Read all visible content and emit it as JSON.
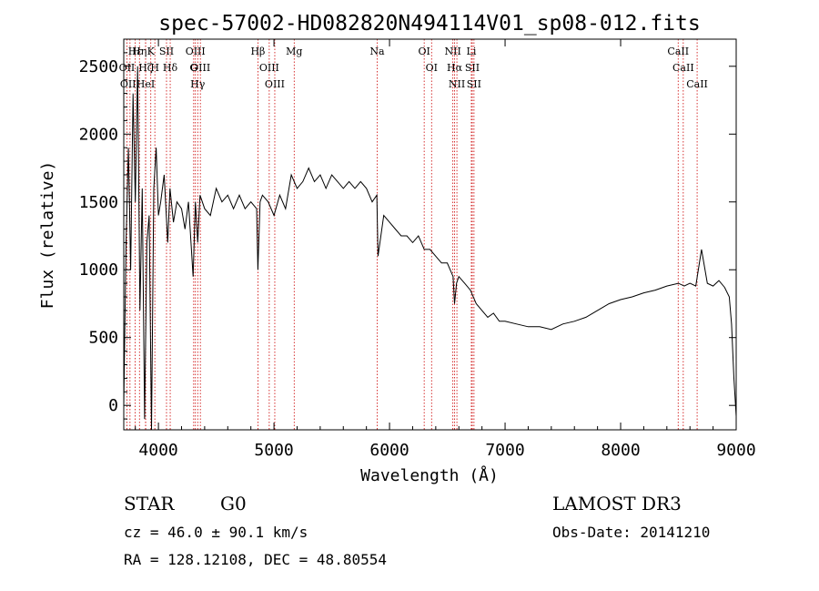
{
  "chart_data": {
    "type": "line",
    "title": "spec-57002-HD082820N494114V01_sp08-012.fits",
    "xlabel": "Wavelength (Å)",
    "ylabel": "Flux (relative)",
    "xlim": [
      3700,
      9000
    ],
    "ylim": [
      -180,
      2700
    ],
    "xticks": [
      4000,
      5000,
      6000,
      7000,
      8000,
      9000
    ],
    "yticks": [
      0,
      500,
      1000,
      1500,
      2000,
      2500
    ],
    "series": [
      {
        "name": "flux",
        "x": [
          3700,
          3720,
          3740,
          3760,
          3780,
          3800,
          3820,
          3840,
          3860,
          3880,
          3900,
          3920,
          3940,
          3960,
          3980,
          4000,
          4020,
          4050,
          4080,
          4100,
          4130,
          4160,
          4200,
          4230,
          4260,
          4300,
          4320,
          4340,
          4360,
          4400,
          4450,
          4500,
          4550,
          4600,
          4650,
          4700,
          4750,
          4800,
          4850,
          4861,
          4880,
          4900,
          4950,
          5000,
          5050,
          5100,
          5150,
          5200,
          5250,
          5300,
          5350,
          5400,
          5450,
          5500,
          5550,
          5600,
          5650,
          5700,
          5750,
          5800,
          5850,
          5890,
          5900,
          5950,
          6000,
          6050,
          6100,
          6150,
          6200,
          6250,
          6300,
          6350,
          6400,
          6450,
          6500,
          6550,
          6563,
          6580,
          6600,
          6650,
          6700,
          6750,
          6800,
          6850,
          6900,
          6950,
          7000,
          7100,
          7200,
          7300,
          7400,
          7500,
          7600,
          7700,
          7800,
          7900,
          8000,
          8100,
          8200,
          8300,
          8400,
          8500,
          8550,
          8600,
          8650,
          8700,
          8750,
          8800,
          8850,
          8900,
          8940,
          8960,
          8980,
          9000
        ],
        "y": [
          0,
          1200,
          1900,
          1000,
          2300,
          1500,
          2500,
          700,
          1600,
          -100,
          1200,
          1400,
          -180,
          1600,
          1900,
          1400,
          1500,
          1700,
          1200,
          1600,
          1350,
          1500,
          1450,
          1300,
          1500,
          950,
          1500,
          1200,
          1550,
          1450,
          1400,
          1600,
          1500,
          1550,
          1450,
          1550,
          1450,
          1500,
          1450,
          1000,
          1500,
          1550,
          1500,
          1400,
          1550,
          1450,
          1700,
          1600,
          1650,
          1750,
          1650,
          1700,
          1600,
          1700,
          1650,
          1600,
          1650,
          1600,
          1650,
          1600,
          1500,
          1550,
          1100,
          1400,
          1350,
          1300,
          1250,
          1250,
          1200,
          1250,
          1150,
          1150,
          1100,
          1050,
          1050,
          950,
          750,
          900,
          950,
          900,
          850,
          750,
          700,
          650,
          680,
          620,
          620,
          600,
          580,
          580,
          560,
          600,
          620,
          650,
          700,
          750,
          780,
          800,
          830,
          850,
          880,
          900,
          880,
          900,
          880,
          1150,
          900,
          880,
          920,
          870,
          800,
          600,
          200,
          -80
        ]
      }
    ],
    "line_markers": [
      {
        "label": "Hε",
        "wavelength": 3798
      },
      {
        "label": "OII",
        "wavelength": 3727
      },
      {
        "label": "OIII",
        "wavelength": 3754
      },
      {
        "label": "Hη",
        "wavelength": 3836
      },
      {
        "label": "Hζ",
        "wavelength": 3889
      },
      {
        "label": "HeI",
        "wavelength": 3889
      },
      {
        "label": "K",
        "wavelength": 3934
      },
      {
        "label": "H",
        "wavelength": 3969
      },
      {
        "label": "SII",
        "wavelength": 4070
      },
      {
        "label": "Hδ",
        "wavelength": 4102
      },
      {
        "label": "OIII",
        "wavelength": 4320
      },
      {
        "label": "G",
        "wavelength": 4305
      },
      {
        "label": "Hγ",
        "wavelength": 4340
      },
      {
        "label": "OIII",
        "wavelength": 4363
      },
      {
        "label": "Hβ",
        "wavelength": 4861
      },
      {
        "label": "OIII",
        "wavelength": 4959
      },
      {
        "label": "OIII",
        "wavelength": 5007
      },
      {
        "label": "Mg",
        "wavelength": 5175
      },
      {
        "label": "Na",
        "wavelength": 5893
      },
      {
        "label": "OI",
        "wavelength": 6300
      },
      {
        "label": "OI",
        "wavelength": 6364
      },
      {
        "label": "NII",
        "wavelength": 6548
      },
      {
        "label": "Hα",
        "wavelength": 6563
      },
      {
        "label": "NII",
        "wavelength": 6583
      },
      {
        "label": "Li",
        "wavelength": 6708
      },
      {
        "label": "SII",
        "wavelength": 6716
      },
      {
        "label": "SII",
        "wavelength": 6731
      },
      {
        "label": "CaII",
        "wavelength": 8498
      },
      {
        "label": "CaII",
        "wavelength": 8542
      },
      {
        "label": "CaII",
        "wavelength": 8662
      }
    ],
    "line_color": "#000000",
    "marker_color": "#cc0000"
  },
  "info": {
    "class_label": "STAR",
    "subclass": "G0",
    "survey": "LAMOST DR3",
    "velocity": "cz = 46.0 ± 90.1 km/s",
    "obs_date": "Obs-Date: 20141210",
    "coords": "RA = 128.12108, DEC =  48.80554"
  }
}
